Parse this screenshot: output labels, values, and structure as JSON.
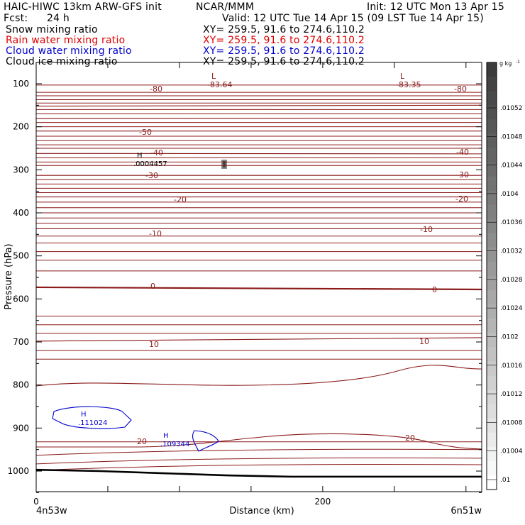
{
  "header": {
    "model": "HAIC-HIWC 13km ARW-GFS init",
    "org": "NCAR/MMM",
    "init": "Init: 12 UTC Mon 13 Apr 15",
    "fcst_label": "Fcst:",
    "fcst_value": "24 h",
    "valid": "Valid: 12 UTC Tue 14 Apr 15 (09 LST Tue 14 Apr 15)"
  },
  "fields": [
    {
      "name": "Snow mixing ratio",
      "xy": "XY= 259.5, 91.6 to 274.6,110.2",
      "color": "#000000"
    },
    {
      "name": "Rain water mixing ratio",
      "xy": "XY= 259.5, 91.6 to 274.6,110.2",
      "color": "#e00000"
    },
    {
      "name": "Cloud water mixing ratio",
      "xy": "XY= 259.5, 91.6 to 274.6,110.2",
      "color": "#0000cc"
    },
    {
      "name": "Cloud ice mixing ratio",
      "xy": "XY= 259.5, 91.6 to 274.6,110.2",
      "color": "#000000"
    }
  ],
  "chart_data": {
    "type": "cross-section contour",
    "xlabel": "Distance (km)",
    "ylabel": "Pressure (hPa)",
    "xlim": [
      0,
      311
    ],
    "x_ticks": [
      0,
      200
    ],
    "x_minor_ticks": [
      50,
      100,
      150,
      200,
      250,
      300
    ],
    "ylim": [
      1050,
      80
    ],
    "y_ticks": [
      100,
      200,
      300,
      400,
      500,
      600,
      700,
      800,
      900,
      1000
    ],
    "endpoints": {
      "left": "4n53w",
      "right": "6n51w"
    },
    "colorbar": {
      "unit": "g kg",
      "unit_exponent": "-1",
      "labels": [
        ".01052",
        ".01048",
        ".01044",
        ".0104",
        ".01036",
        ".01032",
        ".01028",
        ".01024",
        ".0102",
        ".01016",
        ".01012",
        ".01008",
        ".01004",
        ".01"
      ]
    },
    "temperature_labels": [
      "-80",
      "-80",
      "-50",
      "-40",
      "-40",
      "-30",
      "-30",
      "-20",
      "-20",
      "-10",
      "-10",
      "0",
      "0",
      "10",
      "10",
      "20",
      "20"
    ],
    "extrema": [
      {
        "type": "L",
        "value": "-83.64"
      },
      {
        "type": "L",
        "value": "-83.35"
      },
      {
        "type": "H",
        "value": ".0004457"
      },
      {
        "type": "H",
        "value": ".111024"
      },
      {
        "type": "H",
        "value": ".109344"
      }
    ],
    "temperature_contours": [
      {
        "level": -80,
        "p_left": 120,
        "p_right": 120
      },
      {
        "level": -70,
        "p_left": 152,
        "p_right": 150
      },
      {
        "level": -60,
        "p_left": 181,
        "p_right": 180
      },
      {
        "level": -50,
        "p_left": 210,
        "p_right": 210
      },
      {
        "level": -40,
        "p_left": 262,
        "p_right": 263
      },
      {
        "level": -30,
        "p_left": 313,
        "p_right": 313
      },
      {
        "level": -20,
        "p_left": 363,
        "p_right": 363
      },
      {
        "level": -10,
        "p_left": 437,
        "p_right": 437
      },
      {
        "level": 0,
        "p_left": 573,
        "p_right": 578
      },
      {
        "level": 10,
        "p_left": 698,
        "p_right": 690
      },
      {
        "level": 20,
        "p_left": 932,
        "p_right": 932
      }
    ],
    "terrain_pressure_hPa": [
      997,
      1000,
      1005,
      1010,
      1013,
      1013,
      1013,
      1013
    ]
  }
}
